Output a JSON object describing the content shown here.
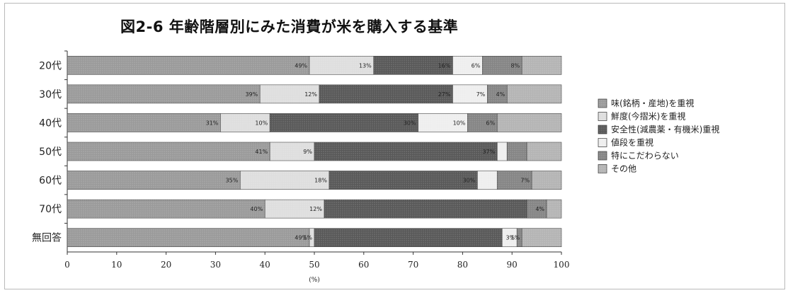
{
  "chart_data": {
    "type": "bar",
    "orientation": "horizontal",
    "stacked": true,
    "title": "図2-6 年齢階層別にみた消費が米を購入する基準",
    "xlabel": "(%)",
    "xlim": [
      0,
      100
    ],
    "xticks": [
      "0",
      "10",
      "20",
      "30",
      "40",
      "50",
      "60",
      "70",
      "80",
      "90",
      "100"
    ],
    "categories": [
      "20代",
      "30代",
      "40代",
      "50代",
      "60代",
      "70代",
      "無回答"
    ],
    "series": [
      {
        "name": "味(銘柄・産地)を重視",
        "color": "#9a9a9a",
        "values": [
          49,
          39,
          31,
          41,
          35,
          40,
          49
        ]
      },
      {
        "name": "鮮度(今摺米)を重視",
        "color": "#dedede",
        "values": [
          13,
          12,
          10,
          9,
          18,
          12,
          1
        ]
      },
      {
        "name": "安全性(減農薬・有機米)重視",
        "color": "#585858",
        "values": [
          16,
          27,
          30,
          37,
          30,
          41,
          38
        ]
      },
      {
        "name": "値段を重視",
        "color": "#eeeeee",
        "values": [
          6,
          7,
          10,
          2,
          4,
          0,
          3
        ]
      },
      {
        "name": "特にこだわらない",
        "color": "#858585",
        "values": [
          8,
          4,
          6,
          4,
          7,
          4,
          1
        ]
      },
      {
        "name": "その他",
        "color": "#b4b4b4",
        "values": [
          8,
          11,
          13,
          7,
          6,
          3,
          8
        ]
      }
    ],
    "data_labels": [
      [
        "49%",
        "13%",
        "16%",
        "6%",
        "8%",
        ""
      ],
      [
        "39%",
        "12%",
        "27%",
        "7%",
        "4%",
        ""
      ],
      [
        "31%",
        "10%",
        "30%",
        "10%",
        "6%",
        ""
      ],
      [
        "41%",
        "9%",
        "37%",
        "",
        "",
        ""
      ],
      [
        "35%",
        "18%",
        "30%",
        "",
        "7%",
        ""
      ],
      [
        "40%",
        "12%",
        "",
        "",
        "4%",
        ""
      ],
      [
        "49%",
        "1%",
        "",
        "3%",
        "1%",
        ""
      ]
    ],
    "legend": {
      "position": "right"
    },
    "grid": false
  }
}
